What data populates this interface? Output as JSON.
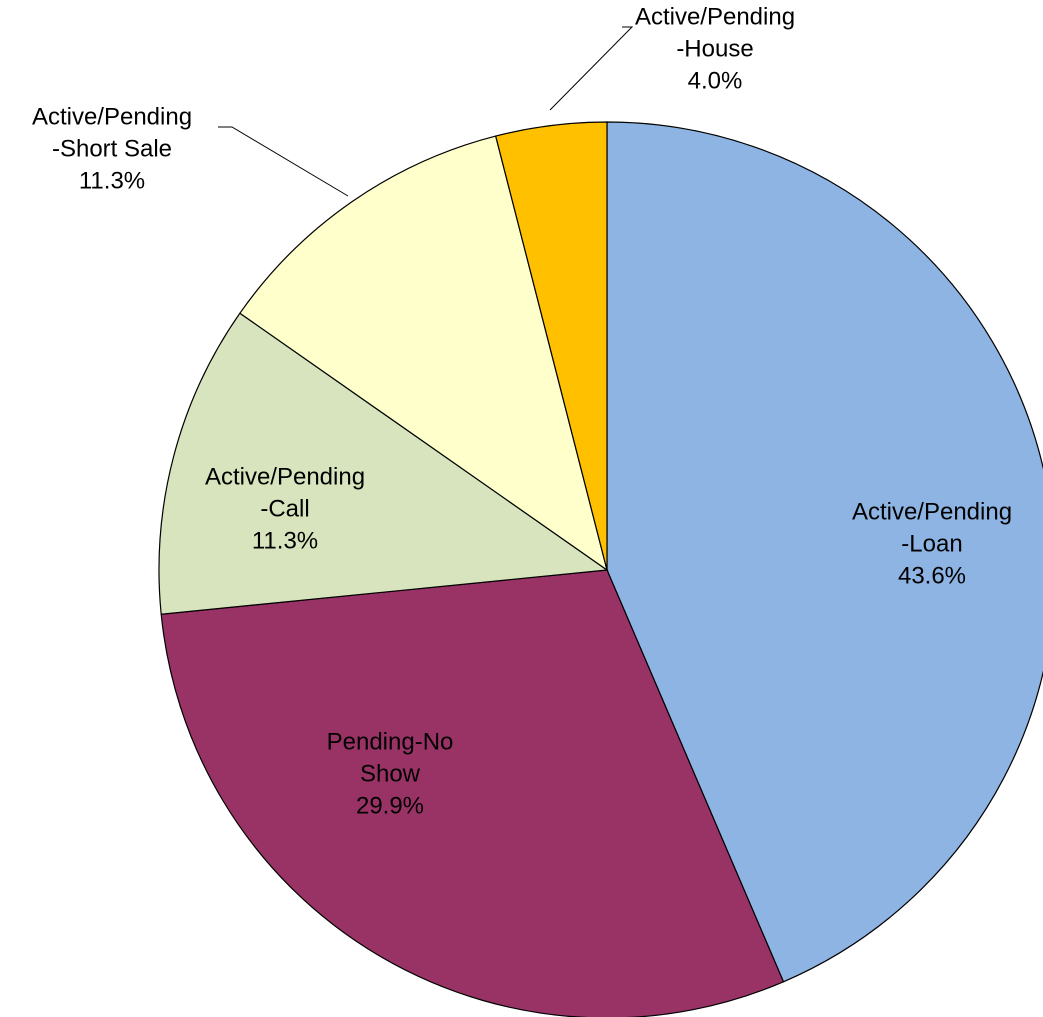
{
  "chart_data": {
    "type": "pie",
    "categories": [
      [
        "Active/Pending",
        "-Loan"
      ],
      [
        "Pending-No",
        "Show"
      ],
      [
        "Active/Pending",
        "-Call"
      ],
      [
        "Active/Pending",
        "-Short Sale"
      ],
      [
        "Active/Pending",
        "-House"
      ]
    ],
    "values": [
      43.6,
      29.9,
      11.3,
      11.3,
      4.0
    ],
    "value_labels": [
      "43.6%",
      "29.9%",
      "11.3%",
      "11.3%",
      "4.0%"
    ],
    "colors": [
      "#8EB4E3",
      "#993366",
      "#D7E4BD",
      "#FFFFCC",
      "#FFC000"
    ]
  }
}
